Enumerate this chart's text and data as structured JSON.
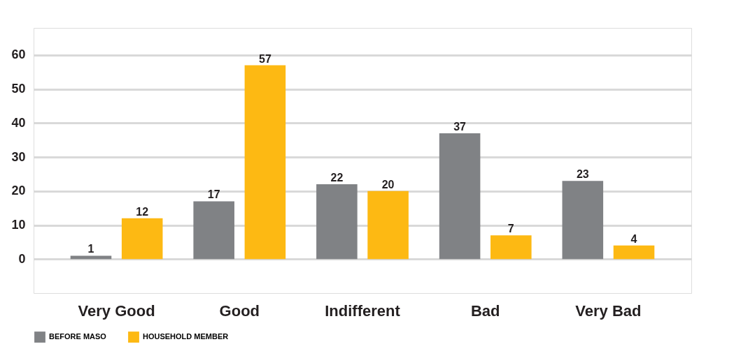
{
  "chart_data": {
    "type": "bar",
    "categories": [
      "Very Good",
      "Good",
      "Indifferent",
      "Bad",
      "Very Bad"
    ],
    "series": [
      {
        "name": "BEFORE MASO",
        "color": "#808285",
        "values": [
          1,
          17,
          22,
          37,
          23
        ]
      },
      {
        "name": "HOUSEHOLD MEMBER",
        "color": "#fdb913",
        "values": [
          12,
          57,
          20,
          7,
          4
        ]
      }
    ],
    "ylim": [
      -10,
      68
    ],
    "yticks": [
      0,
      10,
      20,
      30,
      40,
      50,
      60
    ],
    "grid": "y",
    "legend": "bottom",
    "data_labels": true
  }
}
